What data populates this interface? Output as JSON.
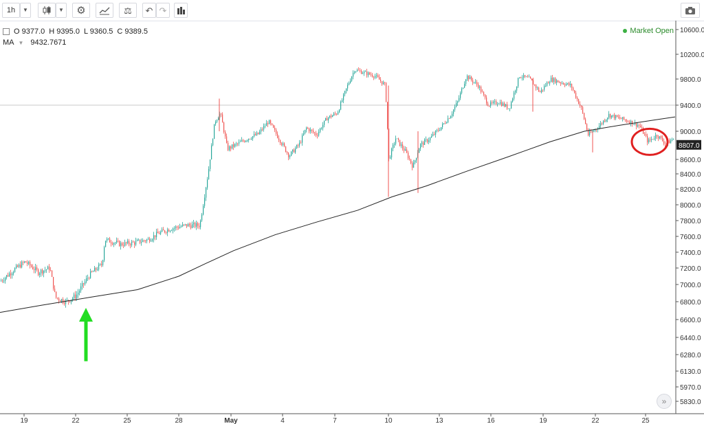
{
  "toolbar": {
    "interval": "1h",
    "interval_dropdown_icon": "caret-down-icon",
    "chart_type_icon": "candles-icon",
    "settings_icon": "gear-icon",
    "indicators_icon": "indicators-icon",
    "compare_icon": "scales-icon",
    "undo_icon": "undo-icon",
    "redo_icon": "redo-icon",
    "bars_icon": "bar-chart-icon",
    "snapshot_icon": "camera-icon"
  },
  "legend": {
    "o_label": "O",
    "o_value": "9377.0",
    "h_label": "H",
    "h_value": "9395.0",
    "l_label": "L",
    "l_value": "9360.5",
    "c_label": "C",
    "c_value": "9389.5",
    "ma_label": "MA",
    "ma_value": "9432.7671"
  },
  "market_status": "Market Open",
  "scroll_icon": "double-chevron-right-icon",
  "colors": {
    "up": "#26a69a",
    "down": "#ef5350",
    "ma": "#222222",
    "arrow": "#22dd22",
    "circle": "#e02020",
    "price_tag": "#222222"
  },
  "chart_data": {
    "type": "candlestick",
    "y_ticks": [
      "10600.0",
      "10200.0",
      "9800.0",
      "9400.0",
      "9000.0",
      "8600.0",
      "8400.0",
      "8200.0",
      "8000.0",
      "7800.0",
      "7600.0",
      "7400.0",
      "7200.0",
      "7000.0",
      "6800.0",
      "6600.0",
      "6440.0",
      "6280.0",
      "6130.0",
      "5970.0",
      "5830.0"
    ],
    "ylim": [
      5700,
      10700
    ],
    "x_ticks": [
      "19",
      "22",
      "25",
      "28",
      "May",
      "4",
      "7",
      "10",
      "13",
      "16",
      "19",
      "22",
      "25"
    ],
    "last_price_label": "8807.0",
    "horizontal_line_price": 9400,
    "price_path": [
      [
        0,
        7040
      ],
      [
        20,
        7180
      ],
      [
        36,
        7280
      ],
      [
        55,
        7150
      ],
      [
        72,
        7200
      ],
      [
        80,
        6850
      ],
      [
        96,
        6800
      ],
      [
        110,
        6870
      ],
      [
        130,
        7120
      ],
      [
        148,
        7250
      ],
      [
        152,
        7560
      ],
      [
        175,
        7500
      ],
      [
        195,
        7520
      ],
      [
        215,
        7560
      ],
      [
        230,
        7640
      ],
      [
        248,
        7700
      ],
      [
        270,
        7740
      ],
      [
        290,
        7740
      ],
      [
        302,
        8400
      ],
      [
        312,
        9150
      ],
      [
        320,
        9280
      ],
      [
        330,
        8750
      ],
      [
        345,
        8820
      ],
      [
        360,
        8900
      ],
      [
        375,
        8960
      ],
      [
        390,
        9150
      ],
      [
        405,
        8900
      ],
      [
        420,
        8650
      ],
      [
        435,
        8820
      ],
      [
        445,
        9050
      ],
      [
        460,
        8950
      ],
      [
        475,
        9200
      ],
      [
        490,
        9280
      ],
      [
        505,
        9700
      ],
      [
        515,
        9950
      ],
      [
        530,
        9900
      ],
      [
        545,
        9850
      ],
      [
        560,
        9700
      ],
      [
        565,
        8600
      ],
      [
        575,
        8900
      ],
      [
        590,
        8700
      ],
      [
        600,
        8500
      ],
      [
        610,
        8800
      ],
      [
        625,
        8900
      ],
      [
        640,
        9050
      ],
      [
        655,
        9250
      ],
      [
        665,
        9450
      ],
      [
        678,
        9850
      ],
      [
        695,
        9700
      ],
      [
        710,
        9400
      ],
      [
        725,
        9450
      ],
      [
        740,
        9350
      ],
      [
        755,
        9850
      ],
      [
        770,
        9800
      ],
      [
        785,
        9600
      ],
      [
        800,
        9800
      ],
      [
        815,
        9750
      ],
      [
        830,
        9700
      ],
      [
        845,
        9350
      ],
      [
        855,
        8950
      ],
      [
        868,
        9050
      ],
      [
        885,
        9250
      ],
      [
        900,
        9200
      ],
      [
        915,
        9150
      ],
      [
        930,
        9080
      ],
      [
        942,
        8850
      ],
      [
        955,
        8950
      ],
      [
        968,
        8820
      ],
      [
        980,
        8900
      ]
    ],
    "ma_path": [
      [
        0,
        6680
      ],
      [
        60,
        6760
      ],
      [
        130,
        6850
      ],
      [
        200,
        6940
      ],
      [
        260,
        7100
      ],
      [
        300,
        7260
      ],
      [
        340,
        7420
      ],
      [
        400,
        7620
      ],
      [
        460,
        7780
      ],
      [
        520,
        7930
      ],
      [
        570,
        8100
      ],
      [
        620,
        8240
      ],
      [
        680,
        8440
      ],
      [
        740,
        8640
      ],
      [
        800,
        8850
      ],
      [
        850,
        9000
      ],
      [
        900,
        9090
      ],
      [
        950,
        9170
      ],
      [
        982,
        9220
      ]
    ],
    "annotations": [
      {
        "type": "arrow",
        "x": 125,
        "from_price": 6220,
        "to_price": 6700
      },
      {
        "type": "ellipse",
        "x": 945,
        "price": 8850
      }
    ]
  }
}
